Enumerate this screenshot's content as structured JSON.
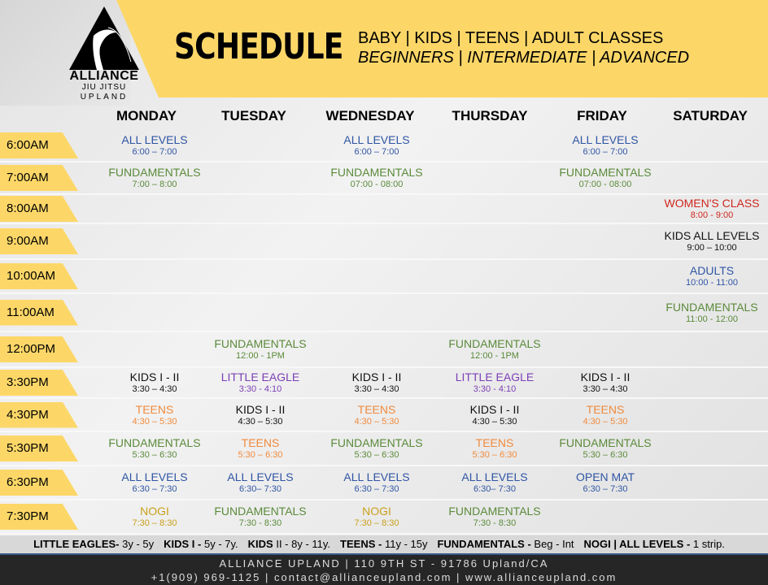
{
  "logo": {
    "name": "ALLIANCE",
    "line2": "JIU JITSU",
    "line3": "UPLAND"
  },
  "header": {
    "title": "SCHEDULE",
    "subtitle1": "BABY | KIDS | TEENS | ADULT CLASSES",
    "subtitle2": "BEGINNERS | INTERMEDIATE | ADVANCED"
  },
  "colors": {
    "yellow": "#fcd768",
    "blue": "#2f55a4",
    "green": "#5a8a3a",
    "red": "#d0261e",
    "orange": "#f08a3c",
    "purple": "#7b3fb5",
    "gold": "#c9a01a",
    "black": "#111111"
  },
  "days": [
    "MONDAY",
    "TUESDAY",
    "WEDNESDAY",
    "THURSDAY",
    "FRIDAY",
    "SATURDAY"
  ],
  "rows": [
    {
      "time": "6:00AM",
      "cells": [
        {
          "name": "ALL LEVELS",
          "time": "6:00 – 7:00",
          "color": "blue"
        },
        null,
        {
          "name": "ALL LEVELS",
          "time": "6:00 – 7:00",
          "color": "blue"
        },
        null,
        {
          "name": "ALL LEVELS",
          "time": "6:00 – 7:00",
          "color": "blue"
        },
        null
      ]
    },
    {
      "time": "7:00AM",
      "cells": [
        {
          "name": "FUNDAMENTALS",
          "time": "7:00 – 8:00",
          "color": "green"
        },
        null,
        {
          "name": "FUNDAMENTALS",
          "time": "07:00 - 08:00",
          "color": "green"
        },
        null,
        {
          "name": "FUNDAMENTALS",
          "time": "07:00 - 08:00",
          "color": "green"
        },
        null
      ]
    },
    {
      "time": "8:00AM",
      "cells": [
        null,
        null,
        null,
        null,
        null,
        {
          "name": "WOMEN'S CLASS",
          "time": "8:00 - 9:00",
          "color": "red"
        }
      ]
    },
    {
      "time": "9:00AM",
      "cells": [
        null,
        null,
        null,
        null,
        null,
        {
          "name": "KIDS ALL LEVELS",
          "time": "9:00 – 10:00",
          "color": "black"
        }
      ]
    },
    {
      "time": "10:00AM",
      "cells": [
        null,
        null,
        null,
        null,
        null,
        {
          "name": "ADULTS",
          "time": "10:00 - 11:00",
          "color": "blue"
        }
      ]
    },
    {
      "time": "11:00AM",
      "cells": [
        null,
        null,
        null,
        null,
        null,
        {
          "name": "FUNDAMENTALS",
          "time": "11:00 - 12:00",
          "color": "green"
        }
      ]
    },
    {
      "time": "12:00PM",
      "cells": [
        null,
        {
          "name": "FUNDAMENTALS",
          "time": "12:00 - 1PM",
          "color": "green"
        },
        null,
        {
          "name": "FUNDAMENTALS",
          "time": "12:00 - 1PM",
          "color": "green"
        },
        null,
        null
      ]
    },
    {
      "time": "3:30PM",
      "cells": [
        {
          "name": "KIDS I - II",
          "time": "3:30 – 4:30",
          "color": "black"
        },
        {
          "name": "LITTLE EAGLE",
          "time": "3:30 - 4:10",
          "color": "purple"
        },
        {
          "name": "KIDS I - II",
          "time": "3:30 – 4:30",
          "color": "black"
        },
        {
          "name": "LITTLE EAGLE",
          "time": "3:30 - 4:10",
          "color": "purple"
        },
        {
          "name": "KIDS I - II",
          "time": "3:30 – 4:30",
          "color": "black"
        },
        null
      ]
    },
    {
      "time": "4:30PM",
      "cells": [
        {
          "name": "TEENS",
          "time": "4:30 – 5:30",
          "color": "orange"
        },
        {
          "name": "KIDS I - II",
          "time": "4:30 – 5:30",
          "color": "black"
        },
        {
          "name": "TEENS",
          "time": "4:30 – 5:30",
          "color": "orange"
        },
        {
          "name": "KIDS I - II",
          "time": "4:30 – 5:30",
          "color": "black"
        },
        {
          "name": "TEENS",
          "time": "4:30 – 5:30",
          "color": "orange"
        },
        null
      ]
    },
    {
      "time": "5:30PM",
      "cells": [
        {
          "name": "FUNDAMENTALS",
          "time": "5:30 – 6:30",
          "color": "green"
        },
        {
          "name": "TEENS",
          "time": "5:30 – 6:30",
          "color": "orange"
        },
        {
          "name": "FUNDAMENTALS",
          "time": "5:30 – 6:30",
          "color": "green"
        },
        {
          "name": "TEENS",
          "time": "5:30 – 6:30",
          "color": "orange"
        },
        {
          "name": "FUNDAMENTALS",
          "time": "5:30 – 6:30",
          "color": "green"
        },
        null
      ]
    },
    {
      "time": "6:30PM",
      "cells": [
        {
          "name": "ALL LEVELS",
          "time": "6:30 – 7:30",
          "color": "blue"
        },
        {
          "name": "ALL LEVELS",
          "time": "6:30– 7:30",
          "color": "blue"
        },
        {
          "name": "ALL LEVELS",
          "time": "6:30 – 7:30",
          "color": "blue"
        },
        {
          "name": "ALL LEVELS",
          "time": "6:30– 7:30",
          "color": "blue"
        },
        {
          "name": "OPEN MAT",
          "time": "6:30 – 7:30",
          "color": "blue"
        },
        null
      ]
    },
    {
      "time": "7:30PM",
      "cells": [
        {
          "name": "NOGI",
          "time": "7:30 – 8:30",
          "color": "gold"
        },
        {
          "name": "FUNDAMENTALS",
          "time": "7:30 - 8:30",
          "color": "green"
        },
        {
          "name": "NOGI",
          "time": "7:30 – 8:30",
          "color": "gold"
        },
        {
          "name": "FUNDAMENTALS",
          "time": "7:30 - 8:30",
          "color": "green"
        },
        null,
        null
      ]
    }
  ],
  "legend": [
    {
      "label": "LITTLE EAGLES-",
      "desc": " 3y - 5y"
    },
    {
      "label": "KIDS I -",
      "desc": " 5y - 7y."
    },
    {
      "label": "KIDS",
      "desc": " II - 8y - 11y."
    },
    {
      "label": "TEENS -",
      "desc": " 11y -  15y"
    },
    {
      "label": "FUNDAMENTALS -",
      "desc": " Beg - Int"
    },
    {
      "label": "NOGI | ALL LEVELS -",
      "desc": " 1 strip."
    }
  ],
  "footer": {
    "line1": "ALLIANCE UPLAND | 110 9TH ST - 91786 Upland/CA",
    "line2": "+1(909) 969-1125  | contact@allianceupland.com | www.allianceupland.com"
  }
}
